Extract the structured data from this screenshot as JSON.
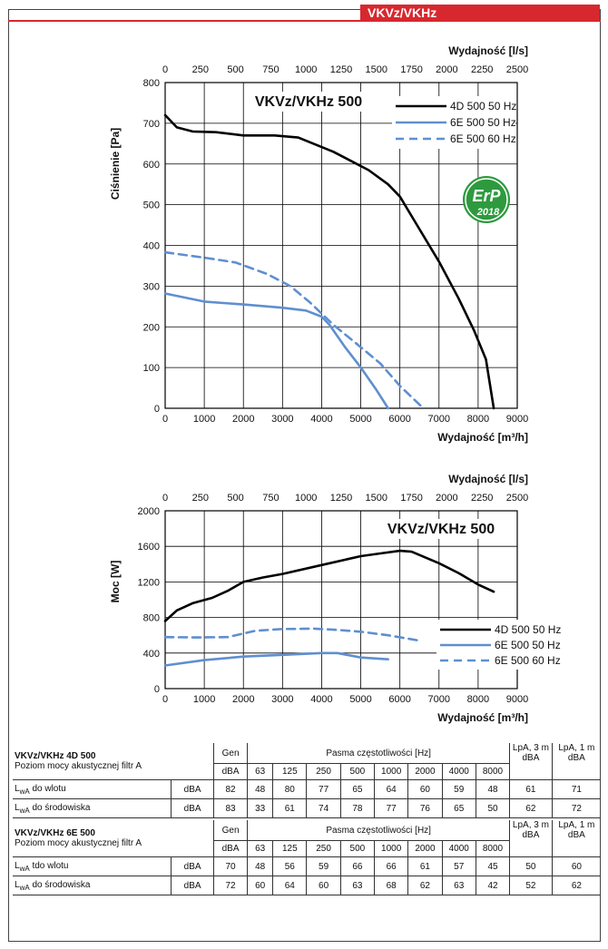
{
  "header": {
    "tag": "VKVz/VKHz"
  },
  "chart_data": [
    {
      "type": "line",
      "title": "VKVz/VKHz 500",
      "ylabel": "Ciśnienie [Pa]",
      "xlabel": "Wydajność [m³/h]",
      "x2label": "Wydajność [l/s]",
      "xlim": [
        0,
        9000
      ],
      "ylim": [
        0,
        800
      ],
      "x2lim": [
        0,
        2500
      ],
      "x_ticks": [
        "0",
        "1000",
        "2000",
        "3000",
        "4000",
        "5000",
        "6000",
        "7000",
        "8000",
        "9000"
      ],
      "y_ticks": [
        "0",
        "100",
        "200",
        "300",
        "400",
        "500",
        "600",
        "700",
        "800"
      ],
      "x2_ticks": [
        "0",
        "250",
        "500",
        "750",
        "1000",
        "1250",
        "1500",
        "1750",
        "2000",
        "2250",
        "2500"
      ],
      "grid": true,
      "legend": "top-right",
      "series": [
        {
          "name": "4D 500 50 Hz",
          "color": "#000000",
          "dash": false,
          "x": [
            0,
            300,
            700,
            1300,
            2000,
            2800,
            3400,
            4300,
            5200,
            5700,
            6000,
            6500,
            7000,
            7500,
            7900,
            8200,
            8400
          ],
          "y": [
            720,
            690,
            680,
            678,
            670,
            670,
            665,
            630,
            585,
            550,
            520,
            440,
            360,
            270,
            190,
            120,
            0
          ]
        },
        {
          "name": "6E 500 50 Hz",
          "color": "#5f8fcf",
          "dash": false,
          "x": [
            0,
            1000,
            2000,
            3000,
            3600,
            4000,
            4200,
            4600,
            5000,
            5400,
            5700
          ],
          "y": [
            282,
            262,
            255,
            247,
            240,
            225,
            205,
            150,
            100,
            45,
            0
          ]
        },
        {
          "name": "6E 500 60 Hz",
          "color": "#5f8fcf",
          "dash": true,
          "x": [
            0,
            1000,
            1800,
            2600,
            3200,
            3700,
            4300,
            5000,
            5500,
            6000,
            6600
          ],
          "y": [
            383,
            370,
            358,
            330,
            300,
            260,
            205,
            150,
            110,
            55,
            0
          ]
        }
      ]
    },
    {
      "type": "line",
      "title": "VKVz/VKHz 500",
      "ylabel": "Moc [W]",
      "xlabel": "Wydajność [m³/h]",
      "x2label": "Wydajność [l/s]",
      "xlim": [
        0,
        9000
      ],
      "ylim": [
        0,
        2000
      ],
      "x2lim": [
        0,
        2500
      ],
      "x_ticks": [
        "0",
        "1000",
        "2000",
        "3000",
        "4000",
        "5000",
        "6000",
        "7000",
        "8000",
        "9000"
      ],
      "y_ticks": [
        "0",
        "400",
        "800",
        "1200",
        "1600",
        "2000"
      ],
      "x2_ticks": [
        "0",
        "250",
        "500",
        "750",
        "1000",
        "1250",
        "1500",
        "1750",
        "2000",
        "2250",
        "2500"
      ],
      "grid": true,
      "legend": "bottom-right",
      "series": [
        {
          "name": "4D 500 50 Hz",
          "color": "#000000",
          "dash": false,
          "x": [
            0,
            300,
            700,
            1200,
            1600,
            2000,
            2500,
            3000,
            4000,
            5000,
            5500,
            6000,
            6300,
            7000,
            7500,
            8000,
            8400
          ],
          "y": [
            760,
            880,
            960,
            1020,
            1100,
            1200,
            1250,
            1290,
            1390,
            1490,
            1520,
            1550,
            1540,
            1410,
            1300,
            1170,
            1090
          ]
        },
        {
          "name": "6E 500 50 Hz",
          "color": "#5f8fcf",
          "dash": false,
          "x": [
            0,
            1000,
            2000,
            3000,
            4000,
            4400,
            5000,
            5700
          ],
          "y": [
            260,
            320,
            360,
            380,
            400,
            400,
            350,
            330
          ]
        },
        {
          "name": "6E 500 60 Hz",
          "color": "#5f8fcf",
          "dash": true,
          "x": [
            0,
            800,
            1600,
            2300,
            3000,
            3800,
            4400,
            5000,
            5700,
            6500
          ],
          "y": [
            580,
            575,
            580,
            650,
            670,
            675,
            660,
            640,
            600,
            540
          ]
        }
      ]
    }
  ],
  "tables": [
    {
      "title": "VKVz/VKHz 4D 500",
      "subtitle": "Poziom mocy akustycznej filtr A",
      "gen": "Gen",
      "bands_label": "Pasma częstotliwości [Hz]",
      "lpa3": "LpA, 3 m",
      "lpa1": "LpA, 1 m",
      "unit": "dBA",
      "bands": [
        "63",
        "125",
        "250",
        "500",
        "1000",
        "2000",
        "4000",
        "8000"
      ],
      "rows": [
        {
          "lw": "L",
          "sub": "wA",
          "label": " do wlotu",
          "unit": "dBA",
          "gen": "82",
          "values": [
            "48",
            "80",
            "77",
            "65",
            "64",
            "60",
            "59",
            "48"
          ],
          "lpa3": "61",
          "lpa1": "71"
        },
        {
          "lw": "L",
          "sub": "wA",
          "label": " do środowiska",
          "unit": "dBA",
          "gen": "83",
          "values": [
            "33",
            "61",
            "74",
            "78",
            "77",
            "76",
            "65",
            "50"
          ],
          "lpa3": "62",
          "lpa1": "72"
        }
      ]
    },
    {
      "title": "VKVz/VKHz 6E 500",
      "subtitle": "Poziom mocy akustycznej filtr A",
      "gen": "Gen",
      "bands_label": "Pasma częstotliwości [Hz]",
      "lpa3": "LpA, 3 m",
      "lpa1": "LpA, 1 m",
      "unit": "dBA",
      "bands": [
        "63",
        "125",
        "250",
        "500",
        "1000",
        "2000",
        "4000",
        "8000"
      ],
      "rows": [
        {
          "lw": "L",
          "sub": "wA",
          "label": " tdo wlotu",
          "unit": "dBA",
          "gen": "70",
          "values": [
            "48",
            "56",
            "59",
            "66",
            "66",
            "61",
            "57",
            "45"
          ],
          "lpa3": "50",
          "lpa1": "60"
        },
        {
          "lw": "L",
          "sub": "wA",
          "label": " do środowiska",
          "unit": "dBA",
          "gen": "72",
          "values": [
            "60",
            "64",
            "60",
            "63",
            "68",
            "62",
            "63",
            "42"
          ],
          "lpa3": "52",
          "lpa1": "62"
        }
      ]
    }
  ],
  "badge": {
    "text_top": "ErP",
    "text_bottom": "2018",
    "color": "#2e9a3e"
  }
}
